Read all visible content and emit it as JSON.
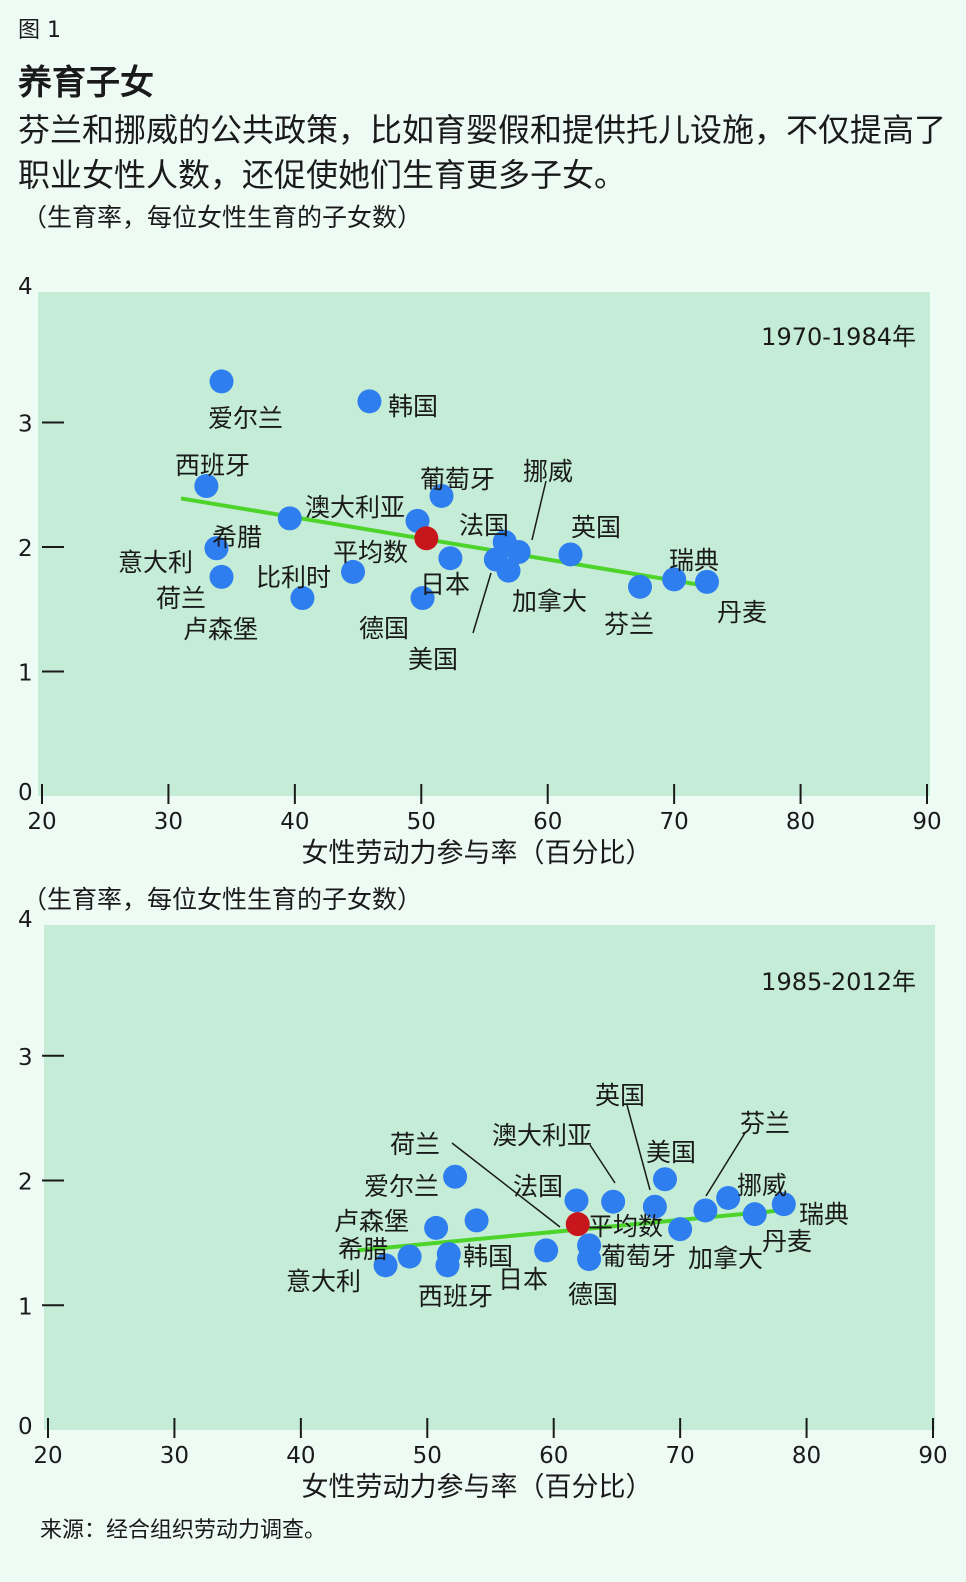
{
  "figure_label": "图 1",
  "title": "养育子女",
  "subtitle": "芬兰和挪威的公共政策，比如育婴假和提供托儿设施，不仅提高了职业女性人数，还促使她们生育更多子女。",
  "source": "来源：经合组织劳动力调查。",
  "colors": {
    "panel_bg": "#c4ecd6",
    "page_bg": "#eefbf4",
    "point": "#2e7ef0",
    "average_point": "#c8161d",
    "trend": "#4cd42a"
  },
  "chart_data": [
    {
      "type": "scatter",
      "period_label": "1970-1984年",
      "ylabel": "（生育率，每位女性生育的子女数）",
      "xlabel": "女性劳动力参与率（百分比）",
      "xlim": [
        20,
        90
      ],
      "ylim": [
        0,
        4
      ],
      "xticks": [
        "20",
        "30",
        "40",
        "50",
        "60",
        "70",
        "80",
        "90"
      ],
      "yticks": [
        "0",
        "1",
        "2",
        "3",
        "4"
      ],
      "trend": {
        "x": [
          31,
          73
        ],
        "y": [
          2.39,
          1.68
        ]
      },
      "points": [
        {
          "name": "爱尔兰",
          "x": 34.2,
          "y": 3.33
        },
        {
          "name": "韩国",
          "x": 45.9,
          "y": 3.17
        },
        {
          "name": "西班牙",
          "x": 33.0,
          "y": 2.49
        },
        {
          "name": "希腊",
          "x": 39.6,
          "y": 2.23
        },
        {
          "name": "意大利",
          "x": 33.8,
          "y": 1.99
        },
        {
          "name": "荷兰",
          "x": 34.2,
          "y": 1.76
        },
        {
          "name": "卢森堡",
          "x": 40.6,
          "y": 1.59
        },
        {
          "name": "比利时",
          "x": 44.6,
          "y": 1.8
        },
        {
          "name": "葡萄牙",
          "x": 51.6,
          "y": 2.41
        },
        {
          "name": "澳大利亚",
          "x": 49.7,
          "y": 2.21
        },
        {
          "name": "平均数",
          "x": 50.4,
          "y": 2.07,
          "average": true
        },
        {
          "name": "日本",
          "x": 52.3,
          "y": 1.91
        },
        {
          "name": "德国",
          "x": 50.1,
          "y": 1.59
        },
        {
          "name": "法国",
          "x": 56.6,
          "y": 2.04
        },
        {
          "name": "挪威",
          "x": 57.7,
          "y": 1.96
        },
        {
          "name": "美国",
          "x": 55.9,
          "y": 1.9
        },
        {
          "name": "加拿大",
          "x": 56.9,
          "y": 1.81
        },
        {
          "name": "英国",
          "x": 61.8,
          "y": 1.94
        },
        {
          "name": "芬兰",
          "x": 67.3,
          "y": 1.68
        },
        {
          "name": "瑞典",
          "x": 70.0,
          "y": 1.74
        },
        {
          "name": "丹麦",
          "x": 72.6,
          "y": 1.72
        }
      ]
    },
    {
      "type": "scatter",
      "period_label": "1985-2012年",
      "ylabel": "（生育率，每位女性生育的子女数）",
      "xlabel": "女性劳动力参与率（百分比）",
      "xlim": [
        20,
        90
      ],
      "ylim": [
        0,
        4
      ],
      "xticks": [
        "20",
        "30",
        "40",
        "50",
        "60",
        "70",
        "80",
        "90"
      ],
      "yticks": [
        "0",
        "1",
        "2",
        "3",
        "4"
      ],
      "trend": {
        "x": [
          44.5,
          79
        ],
        "y": [
          1.44,
          1.77
        ]
      },
      "points": [
        {
          "name": "意大利",
          "x": 46.7,
          "y": 1.32
        },
        {
          "name": "希腊",
          "x": 48.6,
          "y": 1.39
        },
        {
          "name": "卢森堡",
          "x": 50.7,
          "y": 1.62
        },
        {
          "name": "爱尔兰",
          "x": 52.2,
          "y": 2.03
        },
        {
          "name": "西班牙",
          "x": 51.6,
          "y": 1.32
        },
        {
          "name": "韩国",
          "x": 51.7,
          "y": 1.41
        },
        {
          "name": "荷兰",
          "x": 53.9,
          "y": 1.68
        },
        {
          "name": "日本",
          "x": 59.4,
          "y": 1.44
        },
        {
          "name": "法国",
          "x": 61.8,
          "y": 1.84
        },
        {
          "name": "平均数",
          "x": 61.9,
          "y": 1.65,
          "average": true
        },
        {
          "name": "德国",
          "x": 62.8,
          "y": 1.37
        },
        {
          "name": "葡萄牙",
          "x": 62.8,
          "y": 1.48
        },
        {
          "name": "澳大利亚",
          "x": 64.7,
          "y": 1.83
        },
        {
          "name": "英国",
          "x": 68.0,
          "y": 1.79
        },
        {
          "name": "美国",
          "x": 68.8,
          "y": 2.01
        },
        {
          "name": "加拿大",
          "x": 70.0,
          "y": 1.61
        },
        {
          "name": "芬兰",
          "x": 72.0,
          "y": 1.76
        },
        {
          "name": "挪威",
          "x": 73.8,
          "y": 1.86
        },
        {
          "name": "丹麦",
          "x": 75.9,
          "y": 1.73
        },
        {
          "name": "瑞典",
          "x": 78.2,
          "y": 1.81
        }
      ]
    }
  ]
}
